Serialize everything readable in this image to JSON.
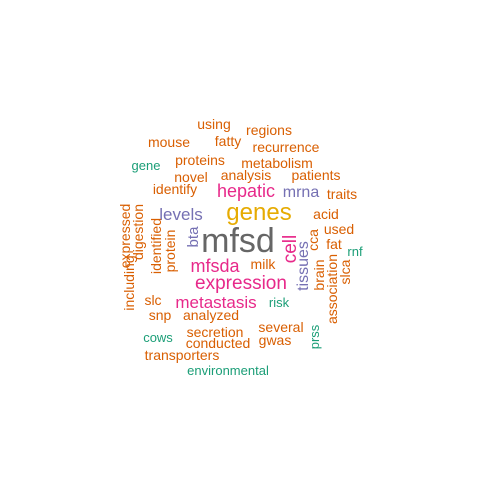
{
  "palette": {
    "orange": "#d95f02",
    "teal": "#1b9e77",
    "purple": "#7570b3",
    "magenta": "#e7298a",
    "gold": "#e6ab02",
    "gray": "#666666"
  },
  "words": [
    {
      "text": "mfsd",
      "color": "gray"
    },
    {
      "text": "genes",
      "color": "gold"
    },
    {
      "text": "expression",
      "color": "magenta"
    },
    {
      "text": "metastasis",
      "color": "magenta"
    },
    {
      "text": "hepatic",
      "color": "magenta"
    },
    {
      "text": "mfsda",
      "color": "magenta"
    },
    {
      "text": "cell",
      "color": "magenta"
    },
    {
      "text": "levels",
      "color": "purple"
    },
    {
      "text": "mrna",
      "color": "purple"
    },
    {
      "text": "tissues",
      "color": "purple"
    },
    {
      "text": "bta",
      "color": "purple"
    },
    {
      "text": "recurrence",
      "color": "orange"
    },
    {
      "text": "metabolism",
      "color": "orange"
    },
    {
      "text": "proteins",
      "color": "orange"
    },
    {
      "text": "analysis",
      "color": "orange"
    },
    {
      "text": "patients",
      "color": "orange"
    },
    {
      "text": "novel",
      "color": "orange"
    },
    {
      "text": "identify",
      "color": "orange"
    },
    {
      "text": "traits",
      "color": "orange"
    },
    {
      "text": "mouse",
      "color": "orange"
    },
    {
      "text": "fatty",
      "color": "orange"
    },
    {
      "text": "regions",
      "color": "orange"
    },
    {
      "text": "using",
      "color": "orange"
    },
    {
      "text": "gene",
      "color": "teal"
    },
    {
      "text": "acid",
      "color": "orange"
    },
    {
      "text": "used",
      "color": "orange"
    },
    {
      "text": "fat",
      "color": "orange"
    },
    {
      "text": "rnf",
      "color": "teal"
    },
    {
      "text": "cca",
      "color": "orange"
    },
    {
      "text": "brain",
      "color": "orange"
    },
    {
      "text": "association",
      "color": "orange"
    },
    {
      "text": "slca",
      "color": "orange"
    },
    {
      "text": "expressed",
      "color": "orange"
    },
    {
      "text": "digestion",
      "color": "orange"
    },
    {
      "text": "identified",
      "color": "orange"
    },
    {
      "text": "protein",
      "color": "orange"
    },
    {
      "text": "milk",
      "color": "orange"
    },
    {
      "text": "including",
      "color": "orange"
    },
    {
      "text": "slc",
      "color": "orange"
    },
    {
      "text": "risk",
      "color": "teal"
    },
    {
      "text": "snp",
      "color": "orange"
    },
    {
      "text": "analyzed",
      "color": "orange"
    },
    {
      "text": "secretion",
      "color": "orange"
    },
    {
      "text": "several",
      "color": "orange"
    },
    {
      "text": "prss",
      "color": "teal"
    },
    {
      "text": "cows",
      "color": "teal"
    },
    {
      "text": "conducted",
      "color": "orange"
    },
    {
      "text": "gwas",
      "color": "orange"
    },
    {
      "text": "transporters",
      "color": "orange"
    },
    {
      "text": "environmental",
      "color": "teal"
    }
  ]
}
